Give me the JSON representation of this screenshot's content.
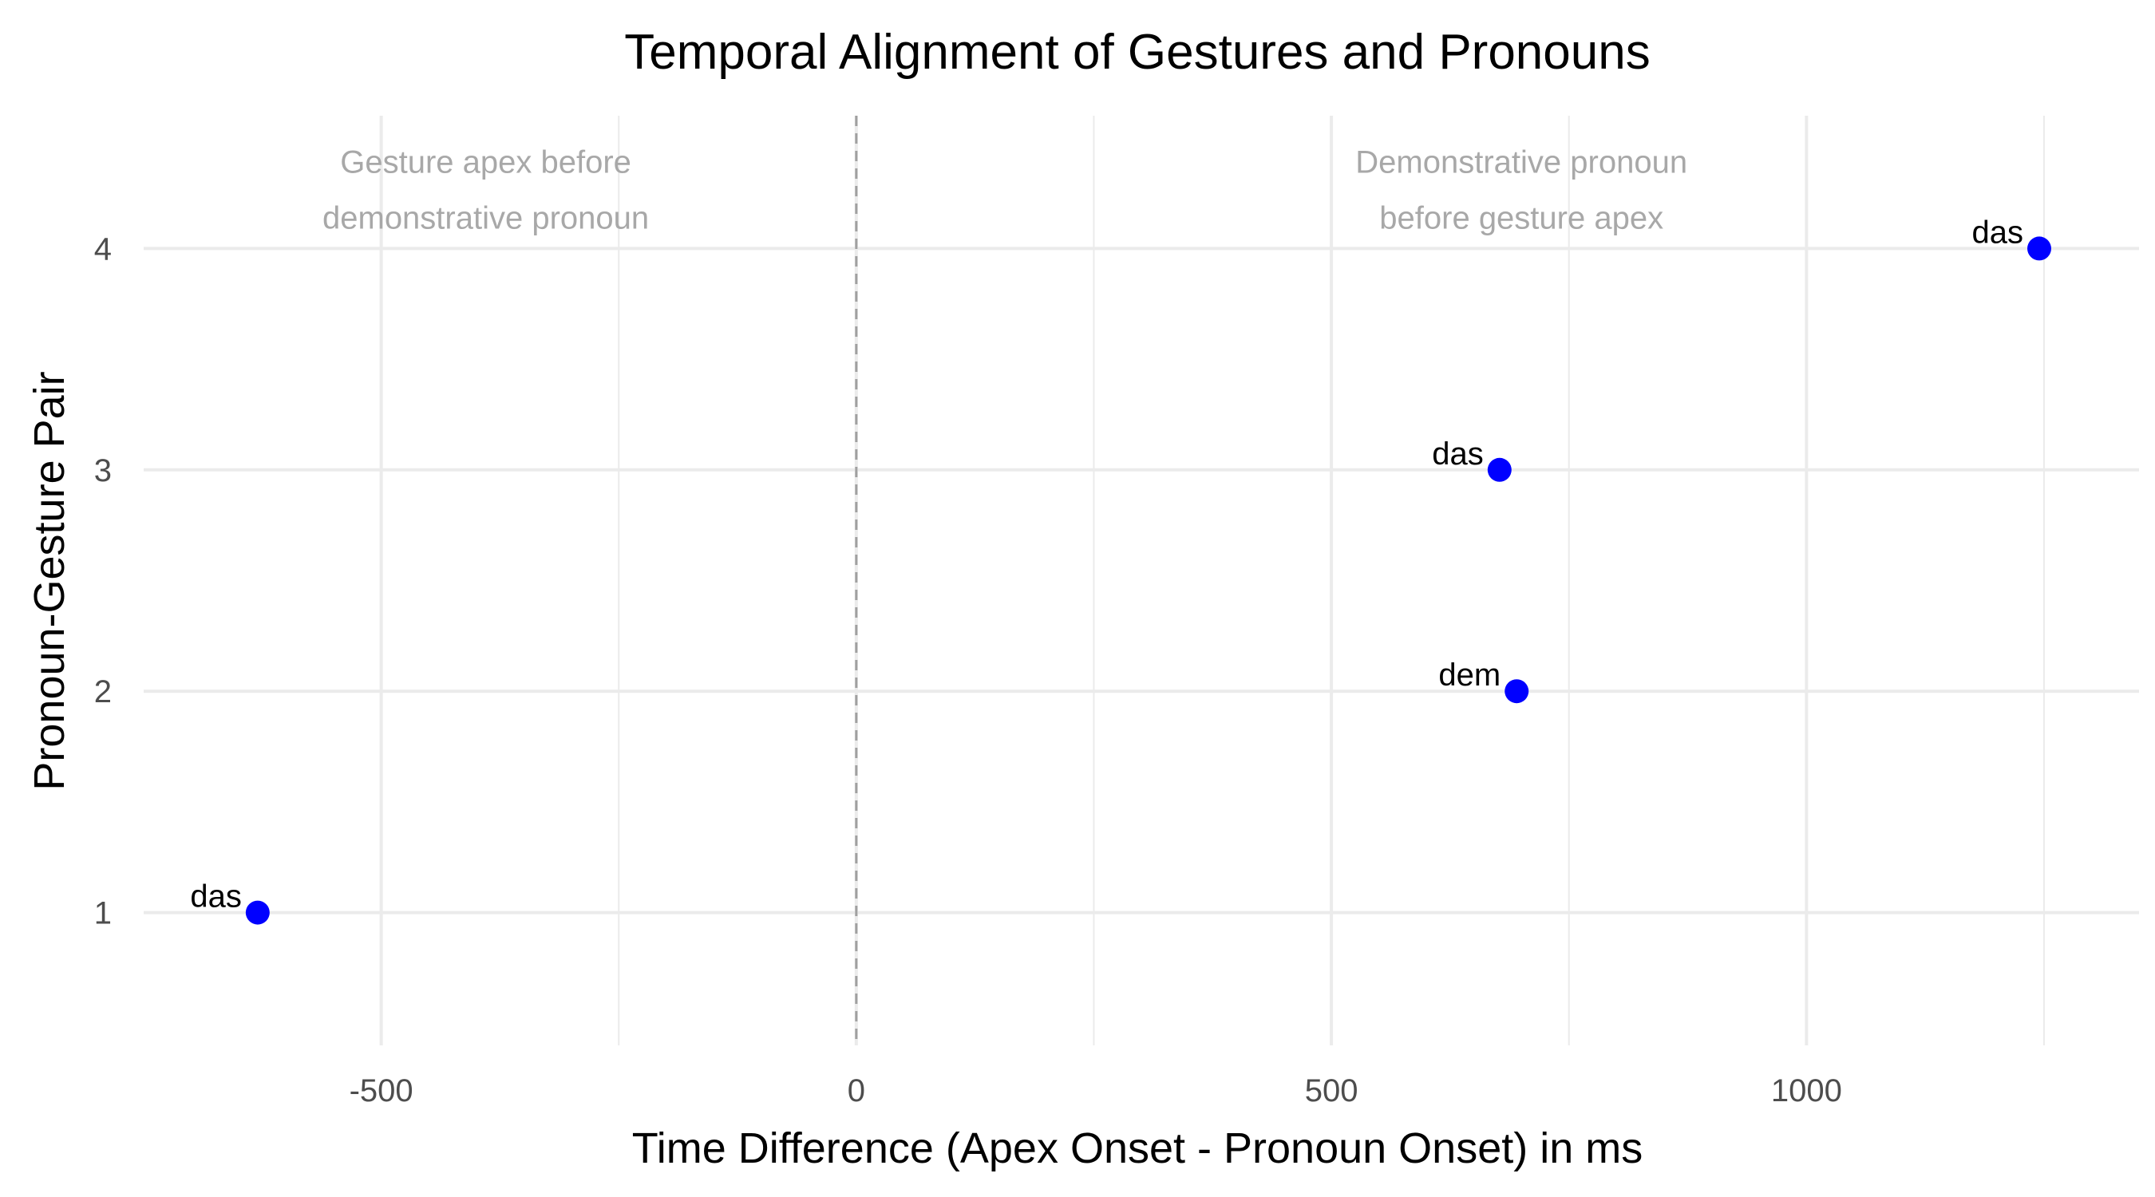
{
  "chart_data": {
    "type": "scatter",
    "title": "Temporal Alignment of Gestures and Pronouns",
    "xlabel": "Time Difference (Apex Onset - Pronoun Onset) in ms",
    "ylabel": "Pronoun-Gesture Pair",
    "xlim": [
      -750,
      1350
    ],
    "ylim": [
      0.4,
      4.6
    ],
    "x_ticks": [
      -500,
      0,
      500,
      1000
    ],
    "x_minor_ticks": [
      -250,
      250,
      750,
      1250
    ],
    "y_ticks": [
      1,
      2,
      3,
      4
    ],
    "grid": true,
    "reference_line": {
      "x": 0,
      "style": "dashed"
    },
    "annotations": [
      {
        "lines": [
          "Gesture apex before",
          "demonstrative pronoun"
        ],
        "x": -390,
        "y": 4.26
      },
      {
        "lines": [
          "Demonstrative pronoun",
          "before gesture apex"
        ],
        "x": 700,
        "y": 4.26
      }
    ],
    "points": [
      {
        "x": -630,
        "y": 1,
        "label": "das"
      },
      {
        "x": 695,
        "y": 2,
        "label": "dem"
      },
      {
        "x": 677,
        "y": 3,
        "label": "das"
      },
      {
        "x": 1245,
        "y": 4,
        "label": "das"
      }
    ],
    "point_color": "#0000ff"
  }
}
